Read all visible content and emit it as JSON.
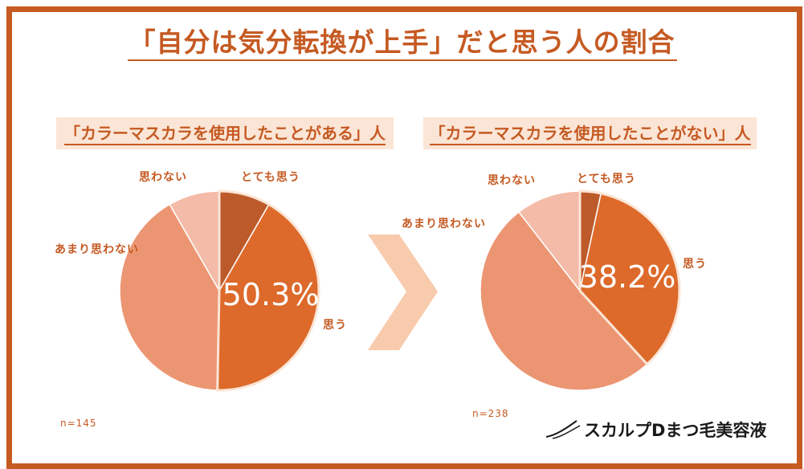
{
  "title": "「自分は気分転換が上手」だと思う人の割合",
  "arrow_color": "#f8cbad",
  "brand": "スカルプDまつ毛美容液",
  "colors": {
    "frame": "#c55a22",
    "とても思う": "#bd5a2a",
    "思う": "#dd6a2a",
    "あまり思わない": "#ec9572",
    "思わない": "#f4bba8",
    "subhead_bg": "#fbe5d6"
  },
  "chart_data": [
    {
      "type": "pie",
      "title": "「カラーマスカラを使用したことがある」人",
      "n_label": "n=145",
      "highlight_label": "50.3%",
      "slices": [
        {
          "label": "とても思う",
          "value": 8.3
        },
        {
          "label": "思う",
          "value": 42.0
        },
        {
          "label": "あまり思わない",
          "value": 41.4
        },
        {
          "label": "思わない",
          "value": 8.3
        }
      ]
    },
    {
      "type": "pie",
      "title": "「カラーマスカラを使用したことがない」人",
      "n_label": "n=238",
      "highlight_label": "38.2%",
      "slices": [
        {
          "label": "とても思う",
          "value": 3.4
        },
        {
          "label": "思う",
          "value": 34.8
        },
        {
          "label": "あまり思わない",
          "value": 51.3
        },
        {
          "label": "思わない",
          "value": 10.5
        }
      ]
    }
  ]
}
